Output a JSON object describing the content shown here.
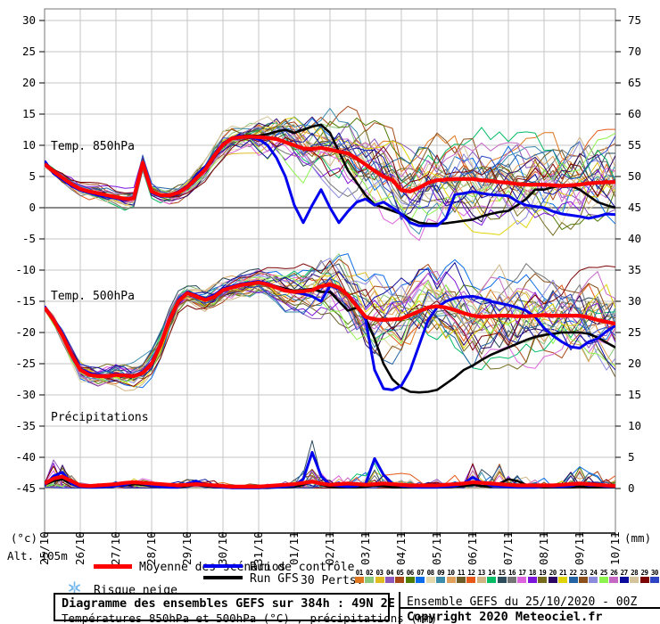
{
  "chart_data": {
    "type": "line",
    "title": "Diagramme des ensembles GEFS sur 384h : 49N 2E",
    "x_tick_labels": [
      "25/10",
      "26/10",
      "27/10",
      "28/10",
      "29/10",
      "30/10",
      "31/10",
      "01/11",
      "02/11",
      "03/11",
      "04/11",
      "05/11",
      "06/11",
      "07/11",
      "08/11",
      "09/11",
      "10/11"
    ],
    "left_axis": {
      "unit": "(°c)",
      "ticks": [
        "30",
        "25",
        "20",
        "15",
        "10",
        "5",
        "0",
        "-5",
        "-10",
        "-15",
        "-20",
        "-25",
        "-30",
        "-35",
        "-40",
        "-45"
      ]
    },
    "right_axis": {
      "unit": "(mm)",
      "ticks": [
        "75",
        "70",
        "65",
        "60",
        "55",
        "50",
        "45",
        "40",
        "35",
        "30",
        "25",
        "20",
        "15",
        "10",
        "5",
        "0"
      ]
    },
    "alt_label": "Alt. 105m",
    "grid": true,
    "panels": [
      {
        "label": "Temp. 850hPa",
        "mean": [
          7.0,
          5.8,
          4.8,
          3.8,
          3.0,
          2.6,
          2.3,
          2.0,
          1.7,
          1.4,
          1.5,
          7.2,
          2.6,
          2.0,
          2.0,
          2.4,
          3.3,
          4.7,
          6.1,
          8.3,
          10.1,
          11.1,
          11.3,
          11.4,
          11.3,
          11.2,
          11.0,
          10.5,
          10.0,
          9.5,
          9.4,
          9.6,
          9.3,
          9.0,
          8.7,
          7.9,
          6.9,
          5.9,
          5.0,
          4.4,
          2.8,
          2.6,
          3.2,
          4.0,
          4.4,
          4.5,
          4.6,
          4.6,
          4.6,
          4.4,
          4.3,
          4.1,
          4.0,
          3.8,
          3.7,
          3.7,
          3.7,
          3.6,
          3.5,
          3.6,
          3.7,
          3.9,
          4.0,
          4.1,
          4.1
        ],
        "control": [
          7.5,
          5.5,
          4.5,
          3.5,
          2.8,
          2.4,
          2.0,
          1.8,
          1.5,
          1.2,
          1.5,
          7.0,
          2.4,
          1.8,
          2.0,
          2.6,
          3.5,
          5.0,
          6.5,
          8.5,
          10.3,
          11.2,
          11.5,
          11.3,
          11.0,
          10.0,
          8.0,
          5.0,
          0.4,
          -2.4,
          0.4,
          2.9,
          0.0,
          -2.4,
          -0.6,
          0.9,
          1.4,
          0.4,
          0.9,
          0.0,
          -1.0,
          -2.4,
          -2.9,
          -2.9,
          -2.9,
          -1.7,
          2.1,
          2.3,
          2.6,
          2.3,
          2.1,
          2.0,
          1.9,
          1.0,
          0.4,
          0.2,
          0.0,
          -0.6,
          -1.0,
          -1.2,
          -1.4,
          -1.7,
          -1.4,
          -1.0,
          -1.1
        ],
        "gfs": [
          7.2,
          5.6,
          4.6,
          3.6,
          2.9,
          2.5,
          2.2,
          1.9,
          1.6,
          1.3,
          1.6,
          7.1,
          2.5,
          1.9,
          2.1,
          2.5,
          3.4,
          4.8,
          6.3,
          8.4,
          10.2,
          11.0,
          11.5,
          11.6,
          11.5,
          11.8,
          12.2,
          12.5,
          12.0,
          12.5,
          13.0,
          13.3,
          12.0,
          9.0,
          6.0,
          4.0,
          2.0,
          0.5,
          0.0,
          -0.5,
          -1.0,
          -1.8,
          -2.4,
          -2.6,
          -2.6,
          -2.5,
          -2.3,
          -2.1,
          -1.9,
          -1.4,
          -1.0,
          -0.7,
          -0.5,
          0.4,
          1.4,
          2.9,
          2.9,
          3.3,
          3.5,
          3.5,
          2.9,
          1.9,
          0.9,
          0.4,
          0.0
        ],
        "spread": [
          0.8,
          0.9,
          1.0,
          1.1,
          1.2,
          1.2,
          1.3,
          1.3,
          1.3,
          1.4,
          1.4,
          1.5,
          1.2,
          1.2,
          1.3,
          1.3,
          1.3,
          1.4,
          1.5,
          1.6,
          1.8,
          1.9,
          2.0,
          2.2,
          3.0,
          3.4,
          3.8,
          4.2,
          4.5,
          4.8,
          5.0,
          5.2,
          5.5,
          5.7,
          5.8,
          5.9,
          6.0,
          6.2,
          6.3,
          6.4,
          6.5,
          6.5,
          6.5,
          6.5,
          6.5,
          6.5,
          6.5,
          6.5,
          6.5,
          6.5,
          6.5,
          6.5,
          6.5,
          6.5,
          6.5,
          6.5,
          6.5,
          6.5,
          6.5,
          6.5,
          6.5,
          6.5,
          6.5,
          6.5,
          6.5
        ]
      },
      {
        "label": "Temp. 500hPa",
        "mean": [
          -16.0,
          -18.0,
          -20.5,
          -23.5,
          -26.0,
          -26.8,
          -27.0,
          -27.0,
          -26.8,
          -26.9,
          -27.0,
          -26.5,
          -25.0,
          -22.0,
          -18.0,
          -15.0,
          -13.7,
          -14.2,
          -14.8,
          -14.3,
          -13.2,
          -12.8,
          -12.4,
          -12.2,
          -12.0,
          -12.3,
          -12.8,
          -13.3,
          -13.5,
          -13.4,
          -13.2,
          -12.6,
          -12.3,
          -12.8,
          -14.0,
          -15.8,
          -17.5,
          -17.9,
          -18.0,
          -17.9,
          -17.8,
          -17.2,
          -16.6,
          -16.0,
          -15.8,
          -16.0,
          -16.4,
          -16.9,
          -17.3,
          -17.5,
          -17.4,
          -17.3,
          -17.3,
          -17.4,
          -17.4,
          -17.3,
          -17.2,
          -17.3,
          -17.3,
          -17.3,
          -17.3,
          -17.6,
          -18.0,
          -18.3,
          -18.6
        ],
        "control": [
          -15.8,
          -17.8,
          -20.2,
          -23.2,
          -25.8,
          -26.5,
          -26.8,
          -26.9,
          -26.6,
          -26.8,
          -26.9,
          -26.3,
          -24.8,
          -21.8,
          -17.8,
          -14.8,
          -13.5,
          -14.0,
          -14.6,
          -14.0,
          -13.0,
          -12.6,
          -12.2,
          -12.0,
          -11.8,
          -12.1,
          -12.7,
          -13.2,
          -13.6,
          -13.8,
          -14.2,
          -15.0,
          -12.5,
          -13.0,
          -14.0,
          -15.5,
          -18.0,
          -26.0,
          -29.0,
          -29.2,
          -28.5,
          -26.0,
          -22.0,
          -18.0,
          -16.0,
          -15.0,
          -14.5,
          -14.3,
          -14.2,
          -14.5,
          -15.0,
          -15.3,
          -15.6,
          -16.0,
          -16.5,
          -17.5,
          -19.3,
          -20.5,
          -21.5,
          -22.3,
          -22.5,
          -21.5,
          -21.0,
          -19.8,
          -18.9
        ],
        "gfs": [
          -15.9,
          -17.9,
          -20.3,
          -23.3,
          -25.9,
          -26.6,
          -26.9,
          -27.0,
          -26.7,
          -26.8,
          -26.9,
          -26.4,
          -24.9,
          -21.9,
          -17.9,
          -14.9,
          -13.6,
          -14.1,
          -14.7,
          -14.1,
          -13.1,
          -12.7,
          -12.3,
          -12.1,
          -11.9,
          -12.2,
          -12.6,
          -13.0,
          -13.3,
          -13.2,
          -13.0,
          -13.5,
          -13.5,
          -15.0,
          -16.5,
          -16.0,
          -17.7,
          -21.0,
          -25.0,
          -27.5,
          -28.8,
          -29.5,
          -29.6,
          -29.5,
          -29.2,
          -28.2,
          -27.2,
          -26.0,
          -25.3,
          -24.4,
          -23.6,
          -23.0,
          -22.4,
          -21.8,
          -21.2,
          -20.7,
          -20.4,
          -20.2,
          -20.0,
          -20.0,
          -20.0,
          -20.2,
          -20.8,
          -21.6,
          -22.4
        ],
        "spread": [
          0.6,
          0.9,
          1.2,
          1.4,
          1.5,
          1.6,
          1.7,
          1.8,
          1.8,
          1.9,
          2.0,
          2.1,
          2.2,
          2.0,
          1.8,
          1.6,
          1.5,
          1.6,
          1.7,
          1.8,
          1.8,
          1.9,
          1.9,
          2.0,
          2.0,
          2.2,
          2.5,
          2.8,
          3.0,
          3.4,
          3.8,
          4.2,
          4.5,
          4.8,
          5.1,
          5.3,
          5.5,
          5.7,
          5.8,
          5.9,
          6.0,
          6.0,
          6.0,
          6.0,
          6.0,
          6.1,
          6.2,
          6.4,
          6.5,
          6.5,
          6.5,
          6.5,
          6.5,
          6.5,
          6.5,
          6.5,
          6.5,
          6.5,
          6.5,
          6.5,
          6.5,
          6.6,
          6.8,
          6.9,
          7.0
        ]
      },
      {
        "label": "Précipitations",
        "mean": [
          0.8,
          1.6,
          1.9,
          1.2,
          0.5,
          0.4,
          0.5,
          0.6,
          0.7,
          0.9,
          1.0,
          0.9,
          0.8,
          0.7,
          0.6,
          0.5,
          0.6,
          0.7,
          0.6,
          0.5,
          0.4,
          0.3,
          0.3,
          0.3,
          0.3,
          0.4,
          0.5,
          0.6,
          0.7,
          0.9,
          1.1,
          0.8,
          0.6,
          0.7,
          0.8,
          0.7,
          0.6,
          0.7,
          0.8,
          0.7,
          0.6,
          0.5,
          0.5,
          0.5,
          0.5,
          0.6,
          0.7,
          0.8,
          1.0,
          0.9,
          0.8,
          0.7,
          0.6,
          0.5,
          0.5,
          0.5,
          0.5,
          0.5,
          0.6,
          0.7,
          0.8,
          0.7,
          0.6,
          0.5,
          0.4
        ],
        "control": [
          0.5,
          2.0,
          2.6,
          0.8,
          0.3,
          0.2,
          0.2,
          0.3,
          0.4,
          0.6,
          1.0,
          0.8,
          0.5,
          0.3,
          0.2,
          0.2,
          0.8,
          1.2,
          0.6,
          0.3,
          0.2,
          0.1,
          0.1,
          0.1,
          0.1,
          0.2,
          0.2,
          0.3,
          0.5,
          1.5,
          5.8,
          2.0,
          0.6,
          0.4,
          0.3,
          0.4,
          0.8,
          4.8,
          2.2,
          0.8,
          0.4,
          0.3,
          0.2,
          0.2,
          0.2,
          0.3,
          0.4,
          0.8,
          1.8,
          1.0,
          0.5,
          0.4,
          0.3,
          0.2,
          0.2,
          0.2,
          0.4,
          0.3,
          0.3,
          0.4,
          0.8,
          0.5,
          0.5,
          0.3,
          0.3
        ],
        "gfs": [
          0.6,
          1.2,
          1.5,
          0.7,
          0.3,
          0.2,
          0.2,
          0.3,
          0.4,
          0.5,
          0.7,
          0.6,
          0.4,
          0.3,
          0.2,
          0.2,
          0.4,
          0.6,
          0.4,
          0.2,
          0.2,
          0.1,
          0.1,
          0.1,
          0.1,
          0.1,
          0.2,
          0.2,
          0.3,
          0.6,
          1.2,
          0.6,
          0.3,
          0.2,
          0.2,
          0.2,
          0.3,
          0.5,
          0.4,
          0.2,
          0.2,
          0.2,
          0.2,
          0.2,
          0.2,
          0.2,
          0.3,
          0.4,
          0.6,
          0.4,
          0.3,
          0.8,
          1.5,
          1.2,
          0.6,
          0.3,
          0.2,
          0.2,
          0.2,
          0.2,
          0.3,
          0.2,
          0.2,
          0.2,
          0.2
        ],
        "spike_scale": [
          3,
          8,
          9,
          5,
          2,
          1.5,
          2,
          2,
          2.5,
          3,
          3,
          2.5,
          2,
          1.5,
          1.5,
          1.5,
          2,
          2.5,
          2,
          1.5,
          1.5,
          1,
          1,
          1,
          1,
          1.5,
          2,
          2.5,
          3,
          5,
          10,
          6,
          4,
          4,
          5,
          4,
          3.5,
          6,
          5,
          3,
          4,
          3,
          2.5,
          2.5,
          3,
          3,
          3.5,
          5,
          13,
          8,
          5,
          9,
          6,
          4,
          3,
          3,
          3,
          3,
          3.5,
          5,
          7,
          5,
          4,
          3,
          3
        ]
      }
    ],
    "members": {
      "count": 30,
      "seed": 20201025,
      "colors": [
        "#e07820",
        "#8cc87c",
        "#e0bc20",
        "#8c58bc",
        "#a84818",
        "#507c04",
        "#0a6ce8",
        "#e4d8ac",
        "#3c8cac",
        "#e0a05c",
        "#6c5c28",
        "#e85818",
        "#d0b484",
        "#04bc64",
        "#2c4c5c",
        "#747474",
        "#dc64dc",
        "#7c14dc",
        "#746c1c",
        "#2c0464",
        "#e0d404",
        "#2464a4",
        "#8c501c",
        "#8c8cdc",
        "#8cf44c",
        "#c468c4",
        "#0c0c9c",
        "#d4c49c",
        "#7c0404",
        "#2c44c4"
      ]
    },
    "colors": {
      "mean": "#ff0000",
      "control": "#0000ee",
      "gfs": "#000000",
      "grid": "#c6c6c6",
      "zero_line": "#8a8a8a"
    }
  },
  "legend": {
    "mean_label": "Moyenne des scénarios",
    "control_label": "Run de contrôle",
    "gfs_label": "Run GFS",
    "perts_label": "30 Perts.",
    "snow_label": "Risque neige",
    "snow_color": "#6db4ec"
  },
  "footer": {
    "title": "Diagramme des ensembles GEFS sur 384h : 49N 2E",
    "subtitle": "Températures 850hPa et 500hPa (°C) , précipitations (mm)",
    "run_info": "Ensemble GEFS du 25/10/2020 - 00Z",
    "copyright": "Copyright 2020 Meteociel.fr"
  }
}
